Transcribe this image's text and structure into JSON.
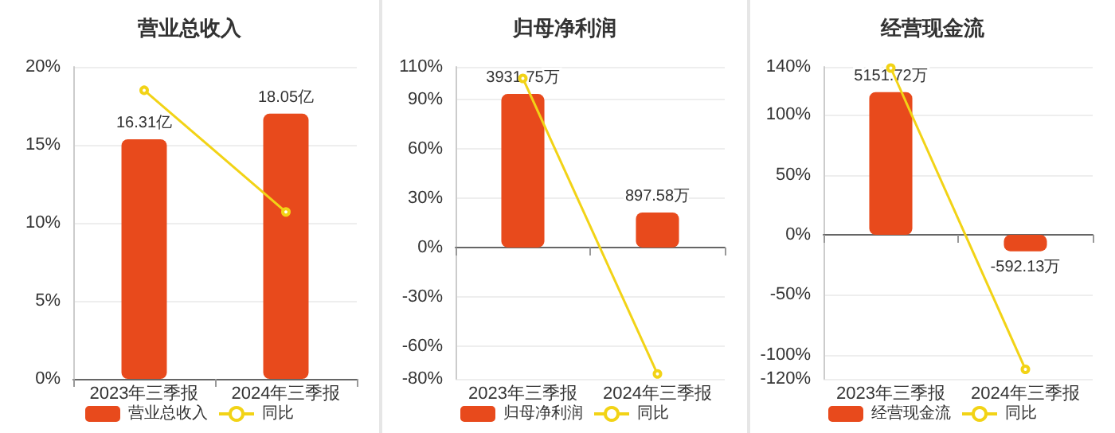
{
  "chart_data": [
    {
      "type": "bar",
      "title": "营业总收入",
      "categories": [
        "2023年三季报",
        "2024年三季报"
      ],
      "series": [
        {
          "name": "营业总收入",
          "axis": "y2",
          "color": "#e84a1c",
          "values": [
            16.31,
            18.05
          ],
          "value_labels": [
            "16.31亿",
            "18.05亿"
          ]
        },
        {
          "name": "同比",
          "type": "line",
          "color": "#f2d316",
          "values": [
            18.5,
            10.7
          ]
        }
      ],
      "ylim": [
        0,
        20
      ],
      "yticks": [
        {
          "value": 0,
          "label": "0%"
        },
        {
          "value": 5,
          "label": "5%"
        },
        {
          "value": 10,
          "label": "10%"
        },
        {
          "value": 15,
          "label": "15%"
        },
        {
          "value": 20,
          "label": "20%"
        }
      ],
      "grid": "y",
      "legend": "bottom",
      "marker": "circle"
    },
    {
      "type": "bar",
      "title": "归母净利润",
      "categories": [
        "2023年三季报",
        "2024年三季报"
      ],
      "series": [
        {
          "name": "归母净利润",
          "axis": "y2",
          "color": "#e84a1c",
          "values": [
            3931.75,
            897.58
          ],
          "value_labels": [
            "3931.75万",
            "897.58万"
          ]
        },
        {
          "name": "同比",
          "type": "line",
          "color": "#f2d316",
          "values": [
            103,
            -77
          ]
        }
      ],
      "ylim": [
        -80,
        110
      ],
      "yticks": [
        {
          "value": -80,
          "label": "-80%"
        },
        {
          "value": -60,
          "label": "-60%"
        },
        {
          "value": -30,
          "label": "-30%"
        },
        {
          "value": 0,
          "label": "0%"
        },
        {
          "value": 30,
          "label": "30%"
        },
        {
          "value": 60,
          "label": "60%"
        },
        {
          "value": 90,
          "label": "90%"
        },
        {
          "value": 110,
          "label": "110%"
        }
      ],
      "grid": "y",
      "legend": "bottom",
      "marker": "circle"
    },
    {
      "type": "bar",
      "title": "经营现金流",
      "categories": [
        "2023年三季报",
        "2024年三季报"
      ],
      "series": [
        {
          "name": "经营现金流",
          "axis": "y2",
          "color": "#e84a1c",
          "values": [
            5151.72,
            -592.13
          ],
          "value_labels": [
            "5151.72万",
            "-592.13万"
          ]
        },
        {
          "name": "同比",
          "type": "line",
          "color": "#f2d316",
          "values": [
            139,
            -112
          ]
        }
      ],
      "ylim": [
        -120,
        140
      ],
      "yticks": [
        {
          "value": -120,
          "label": "-120%"
        },
        {
          "value": -100,
          "label": "-100%"
        },
        {
          "value": -50,
          "label": "-50%"
        },
        {
          "value": 0,
          "label": "0%"
        },
        {
          "value": 50,
          "label": "50%"
        },
        {
          "value": 100,
          "label": "100%"
        },
        {
          "value": 140,
          "label": "140%"
        }
      ],
      "grid": "y",
      "legend": "bottom",
      "marker": "circle"
    }
  ]
}
